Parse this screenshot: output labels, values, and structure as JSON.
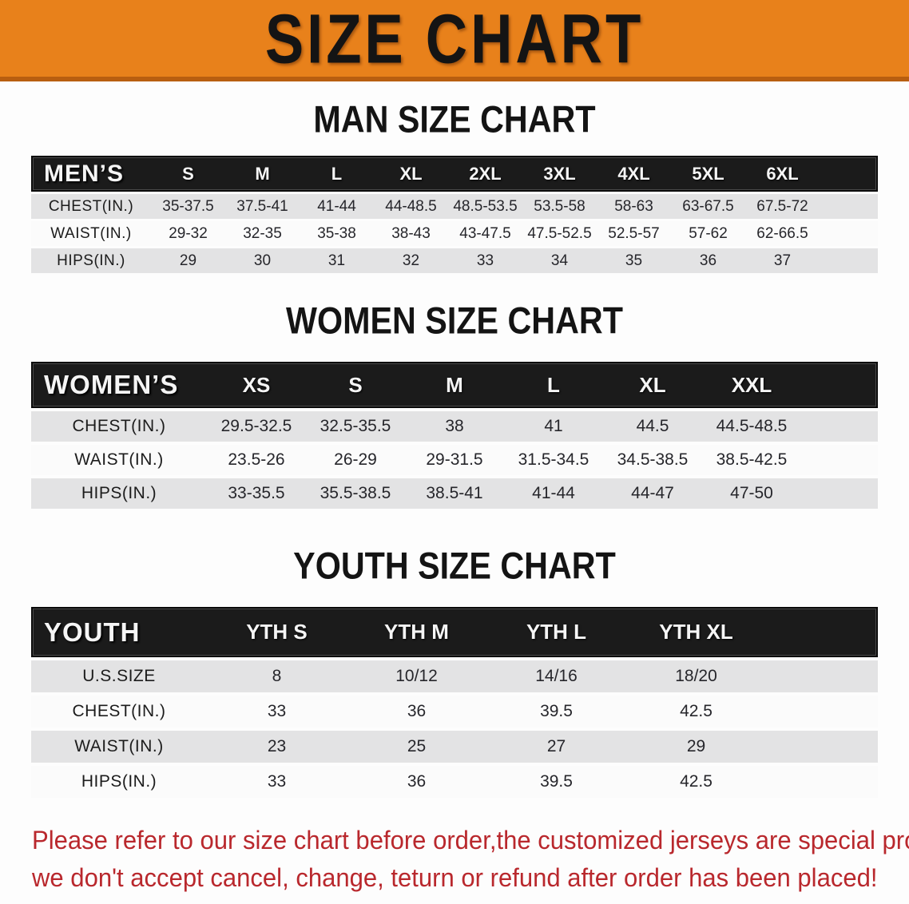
{
  "banner": {
    "title": "SIZE CHART"
  },
  "sections": [
    {
      "heading": "MAN SIZE CHART",
      "table_label": "MEN’S",
      "columns": [
        "S",
        "M",
        "L",
        "XL",
        "2XL",
        "3XL",
        "4XL",
        "5XL",
        "6XL"
      ],
      "rows": [
        {
          "label": "CHEST(IN.)",
          "values": [
            "35-37.5",
            "37.5-41",
            "41-44",
            "44-48.5",
            "48.5-53.5",
            "53.5-58",
            "58-63",
            "63-67.5",
            "67.5-72"
          ]
        },
        {
          "label": "WAIST(IN.)",
          "values": [
            "29-32",
            "32-35",
            "35-38",
            "38-43",
            "43-47.5",
            "47.5-52.5",
            "52.5-57",
            "57-62",
            "62-66.5"
          ]
        },
        {
          "label": "HIPS(IN.)",
          "values": [
            "29",
            "30",
            "31",
            "32",
            "33",
            "34",
            "35",
            "36",
            "37"
          ]
        }
      ]
    },
    {
      "heading": "WOMEN SIZE CHART",
      "table_label": "WOMEN’S",
      "columns": [
        "XS",
        "S",
        "M",
        "L",
        "XL",
        "XXL"
      ],
      "rows": [
        {
          "label": "CHEST(IN.)",
          "values": [
            "29.5-32.5",
            "32.5-35.5",
            "38",
            "41",
            "44.5",
            "44.5-48.5"
          ]
        },
        {
          "label": "WAIST(IN.)",
          "values": [
            "23.5-26",
            "26-29",
            "29-31.5",
            "31.5-34.5",
            "34.5-38.5",
            "38.5-42.5"
          ]
        },
        {
          "label": "HIPS(IN.)",
          "values": [
            "33-35.5",
            "35.5-38.5",
            "38.5-41",
            "41-44",
            "44-47",
            "47-50"
          ]
        }
      ]
    },
    {
      "heading": "YOUTH SIZE CHART",
      "table_label": "YOUTH",
      "columns": [
        "YTH S",
        "YTH M",
        "YTH L",
        "YTH XL"
      ],
      "rows": [
        {
          "label": "U.S.SIZE",
          "values": [
            "8",
            "10/12",
            "14/16",
            "18/20"
          ]
        },
        {
          "label": "CHEST(IN.)",
          "values": [
            "33",
            "36",
            "39.5",
            "42.5"
          ]
        },
        {
          "label": "WAIST(IN.)",
          "values": [
            "23",
            "25",
            "27",
            "29"
          ]
        },
        {
          "label": "HIPS(IN.)",
          "values": [
            "33",
            "36",
            "39.5",
            "42.5"
          ]
        }
      ]
    }
  ],
  "footer": {
    "line1": "Please refer to our size chart before order,the customized jerseys are special products,",
    "line2": "we don't accept cancel, change, teturn or refund after order has been placed!"
  },
  "colors": {
    "banner_bg": "#E8811B",
    "banner_border": "#B85E10",
    "header_bar_bg": "#1B1B1B",
    "header_bar_text": "#F5F5F5",
    "row_stripe": "#E3E3E4",
    "notice_text": "#B9282D"
  }
}
